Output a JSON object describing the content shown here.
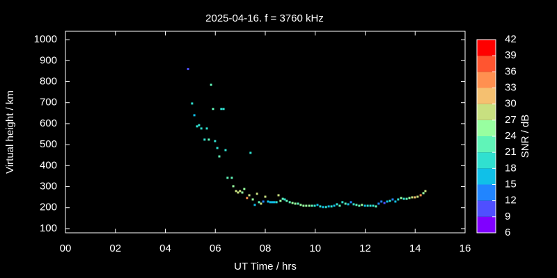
{
  "chart_data": {
    "type": "scatter",
    "title": "2025-04-16. f = 3760 kHz",
    "x_label": "UT Time / hrs",
    "y_label": "Virtual height / km",
    "colorbar_label": "SNR / dB",
    "x": [
      4.91,
      5.07,
      5.16,
      5.27,
      5.35,
      5.44,
      5.57,
      5.66,
      5.74,
      5.83,
      5.91,
      5.99,
      6.08,
      6.16,
      6.24,
      6.33,
      6.41,
      6.49,
      6.66,
      6.72,
      6.83,
      6.91,
      6.99,
      7.08,
      7.16,
      7.27,
      7.36,
      7.41,
      7.5,
      7.58,
      7.67,
      7.75,
      7.83,
      7.92,
      8.0,
      8.11,
      8.2,
      8.28,
      8.36,
      8.45,
      8.53,
      8.61,
      8.7,
      8.78,
      8.86,
      8.98,
      9.09,
      9.2,
      9.31,
      9.42,
      9.53,
      9.64,
      9.76,
      9.87,
      9.98,
      10.09,
      10.2,
      10.31,
      10.43,
      10.54,
      10.65,
      10.76,
      10.87,
      10.98,
      11.09,
      11.21,
      11.32,
      11.43,
      11.54,
      11.65,
      11.76,
      11.87,
      11.99,
      12.1,
      12.21,
      12.32,
      12.43,
      12.54,
      12.65,
      12.77,
      12.88,
      12.99,
      13.1,
      13.21,
      13.32,
      13.44,
      13.55,
      13.66,
      13.77,
      13.88,
      13.99,
      14.1,
      14.22,
      14.33,
      14.41
    ],
    "y": [
      860,
      696,
      640,
      587,
      593,
      577,
      524,
      577,
      524,
      785,
      670,
      517,
      484,
      444,
      670,
      670,
      474,
      342,
      342,
      302,
      279,
      272,
      279,
      272,
      289,
      246,
      259,
      461,
      239,
      213,
      266,
      226,
      219,
      229,
      252,
      229,
      226,
      226,
      226,
      226,
      259,
      232,
      242,
      239,
      232,
      226,
      222,
      219,
      219,
      213,
      209,
      209,
      209,
      209,
      209,
      213,
      206,
      203,
      203,
      206,
      206,
      209,
      216,
      209,
      226,
      219,
      216,
      226,
      216,
      213,
      209,
      213,
      209,
      209,
      209,
      209,
      206,
      219,
      229,
      222,
      229,
      232,
      239,
      229,
      239,
      246,
      242,
      242,
      246,
      249,
      249,
      252,
      259,
      269,
      279
    ],
    "snr": [
      11,
      19,
      17,
      20,
      19,
      20,
      20,
      19,
      21,
      21,
      21,
      18,
      19,
      21,
      19,
      19,
      19,
      21,
      21,
      24,
      27,
      27,
      28,
      24,
      26,
      33,
      27,
      18,
      24,
      16,
      27,
      22,
      29,
      12,
      28,
      15,
      15,
      16,
      16,
      18,
      28,
      24,
      22,
      20,
      22,
      21,
      24,
      26,
      21,
      26,
      24,
      25,
      24,
      22,
      20,
      15,
      19,
      16,
      18,
      16,
      18,
      16,
      18,
      22,
      20,
      21,
      15,
      14,
      18,
      21,
      23,
      24,
      15,
      18,
      20,
      20,
      22,
      13,
      14,
      11,
      17,
      18,
      12,
      15,
      18,
      24,
      19,
      22,
      24,
      27,
      30,
      28,
      33,
      26,
      27
    ],
    "xlim": [
      0,
      16
    ],
    "xticks": [
      {
        "value": 0,
        "label": "00"
      },
      {
        "value": 2,
        "label": "02"
      },
      {
        "value": 4,
        "label": "04"
      },
      {
        "value": 6,
        "label": "06"
      },
      {
        "value": 8,
        "label": "08"
      },
      {
        "value": 10,
        "label": "10"
      },
      {
        "value": 12,
        "label": "12"
      },
      {
        "value": 14,
        "label": "14"
      },
      {
        "value": 16,
        "label": "16"
      }
    ],
    "ylim": [
      80,
      1040
    ],
    "yticks": [
      100,
      200,
      300,
      400,
      500,
      600,
      700,
      800,
      900,
      1000
    ],
    "clim": [
      6,
      42
    ],
    "cticks": [
      6,
      9,
      12,
      15,
      18,
      21,
      24,
      27,
      30,
      33,
      36,
      39,
      42
    ],
    "colors": [
      "#8000ff",
      "#4f4fff",
      "#2185ff",
      "#10c0e8",
      "#30e0d0",
      "#60f4b8",
      "#98ffa0",
      "#c8e080",
      "#f5c070",
      "#ff9050",
      "#ff5530",
      "#ff0000"
    ]
  }
}
